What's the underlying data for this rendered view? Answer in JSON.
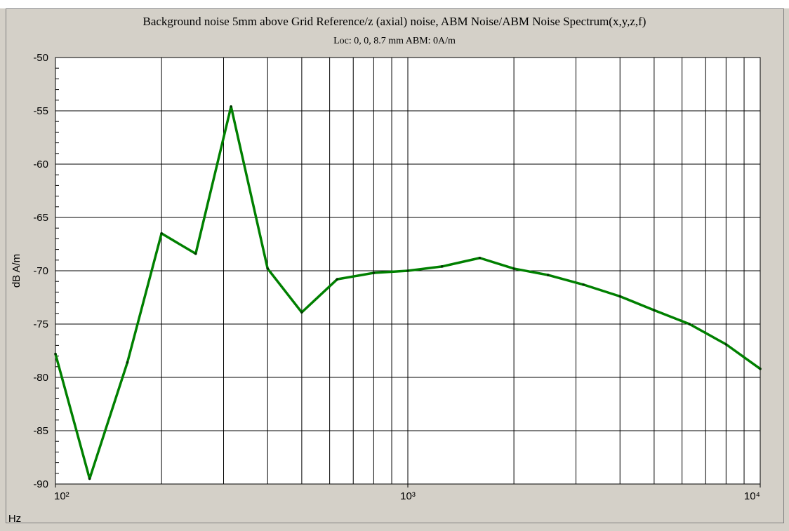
{
  "chart_data": {
    "type": "line",
    "title": "Background noise 5mm above Grid Reference/z (axial) noise, ABM Noise/ABM Noise Spectrum(x,y,z,f)",
    "subtitle": "Loc: 0, 0, 8.7 mm ABM: 0A/m",
    "x_label": "Hz",
    "y_label": "dB A/m",
    "x_log": true,
    "grid": true,
    "x": [
      100,
      125,
      160,
      200,
      250,
      315,
      400,
      500,
      630,
      800,
      1000,
      1250,
      1600,
      2000,
      2500,
      3150,
      4000,
      5000,
      6300,
      8000,
      10000
    ],
    "series": [
      {
        "name": "ABM Noise Spectrum",
        "color": "#008000",
        "values": [
          -77.8,
          -89.5,
          -78.6,
          -66.5,
          -68.4,
          -54.6,
          -69.8,
          -73.9,
          -70.8,
          -70.2,
          -70.0,
          -69.6,
          -68.8,
          -69.8,
          -70.4,
          -71.3,
          -72.4,
          -73.7,
          -75.0,
          -76.9,
          -79.2
        ]
      }
    ],
    "xlim": [
      100,
      10000
    ],
    "xticks": [
      {
        "value": 100,
        "label": "10²"
      },
      {
        "value": 1000,
        "label": "10³"
      },
      {
        "value": 10000,
        "label": "10⁴"
      }
    ],
    "xgrid": [
      200,
      300,
      400,
      500,
      600,
      700,
      800,
      900,
      2000,
      3000,
      4000,
      5000,
      6000,
      7000,
      8000,
      9000
    ],
    "ylim": [
      -90,
      -50
    ],
    "yticks": [
      -90,
      -85,
      -80,
      -75,
      -70,
      -65,
      -60,
      -55,
      -50
    ]
  }
}
